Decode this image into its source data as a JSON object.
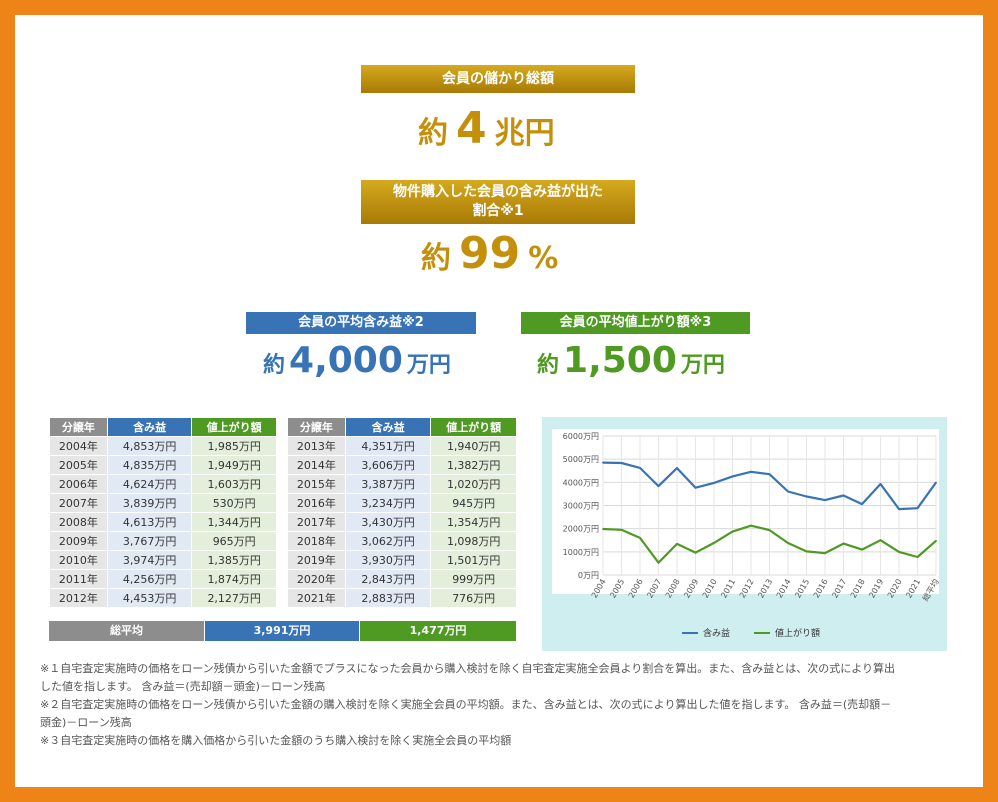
{
  "hero": {
    "total_label": "会員の儲かり総額",
    "total_prefix": "約",
    "total_value": "4",
    "total_unit": "兆円",
    "ratio_label_line1": "物件購入した会員の含み益が出た",
    "ratio_label_line2": "割合※1",
    "ratio_prefix": "約",
    "ratio_value": "99",
    "ratio_unit": "%"
  },
  "averages": {
    "gain_label": "会員の平均含み益※2",
    "gain_prefix": "約",
    "gain_value": "4,000",
    "gain_unit": "万円",
    "up_label": "会員の平均値上がり額※3",
    "up_prefix": "約",
    "up_value": "1,500",
    "up_unit": "万円"
  },
  "colors": {
    "gold": "#c48f0a",
    "blue": "#3873b6",
    "green": "#4f9a22",
    "orange_frame": "#ee8418",
    "chart_bg": "#cfeef0"
  },
  "table": {
    "headers": [
      "分譲年",
      "含み益",
      "値上がり額"
    ],
    "left": [
      [
        "2004年",
        "4,853万円",
        "1,985万円"
      ],
      [
        "2005年",
        "4,835万円",
        "1,949万円"
      ],
      [
        "2006年",
        "4,624万円",
        "1,603万円"
      ],
      [
        "2007年",
        "3,839万円",
        "530万円"
      ],
      [
        "2008年",
        "4,613万円",
        "1,344万円"
      ],
      [
        "2009年",
        "3,767万円",
        "965万円"
      ],
      [
        "2010年",
        "3,974万円",
        "1,385万円"
      ],
      [
        "2011年",
        "4,256万円",
        "1,874万円"
      ],
      [
        "2012年",
        "4,453万円",
        "2,127万円"
      ]
    ],
    "right": [
      [
        "2013年",
        "4,351万円",
        "1,940万円"
      ],
      [
        "2014年",
        "3,606万円",
        "1,382万円"
      ],
      [
        "2015年",
        "3,387万円",
        "1,020万円"
      ],
      [
        "2016年",
        "3,234万円",
        "945万円"
      ],
      [
        "2017年",
        "3,430万円",
        "1,354万円"
      ],
      [
        "2018年",
        "3,062万円",
        "1,098万円"
      ],
      [
        "2019年",
        "3,930万円",
        "1,501万円"
      ],
      [
        "2020年",
        "2,843万円",
        "999万円"
      ],
      [
        "2021年",
        "2,883万円",
        "776万円"
      ]
    ],
    "avg_label": "総平均",
    "avg_gain": "3,991万円",
    "avg_up": "1,477万円"
  },
  "chart_data": {
    "type": "line",
    "categories": [
      "2004",
      "2005",
      "2006",
      "2007",
      "2008",
      "2009",
      "2010",
      "2011",
      "2012",
      "2013",
      "2014",
      "2015",
      "2016",
      "2017",
      "2018",
      "2019",
      "2020",
      "2021",
      "総平均"
    ],
    "series": [
      {
        "name": "含み益",
        "color": "#3873b6",
        "values": [
          4853,
          4835,
          4624,
          3839,
          4613,
          3767,
          3974,
          4256,
          4453,
          4351,
          3606,
          3387,
          3234,
          3430,
          3062,
          3930,
          2843,
          2883,
          3991
        ]
      },
      {
        "name": "値上がり額",
        "color": "#4f9a22",
        "values": [
          1985,
          1949,
          1603,
          530,
          1344,
          965,
          1385,
          1874,
          2127,
          1940,
          1382,
          1020,
          945,
          1354,
          1098,
          1501,
          999,
          776,
          1477
        ]
      }
    ],
    "y_ticks": [
      "0万円",
      "1000万円",
      "2000万円",
      "3000万円",
      "4000万円",
      "5000万円",
      "6000万円"
    ],
    "ylim": [
      0,
      6000
    ],
    "grid": true,
    "legend": "bottom"
  },
  "notes": [
    "※１自宅査定実施時の価格をローン残債から引いた金額でプラスになった会員から購入検討を除く自宅査定実施全会員より割合を算出。また、含み益とは、次の式により算出",
    "した値を指します。 含み益＝(売却額－頭金)－ローン残高",
    "※２自宅査定実施時の価格をローン残債から引いた金額の購入検討を除く実施全会員の平均額。また、含み益とは、次の式により算出した値を指します。 含み益＝(売却額－",
    "頭金)－ローン残高",
    "※３自宅査定実施時の価格を購入価格から引いた金額のうち購入検討を除く実施全会員の平均額"
  ]
}
